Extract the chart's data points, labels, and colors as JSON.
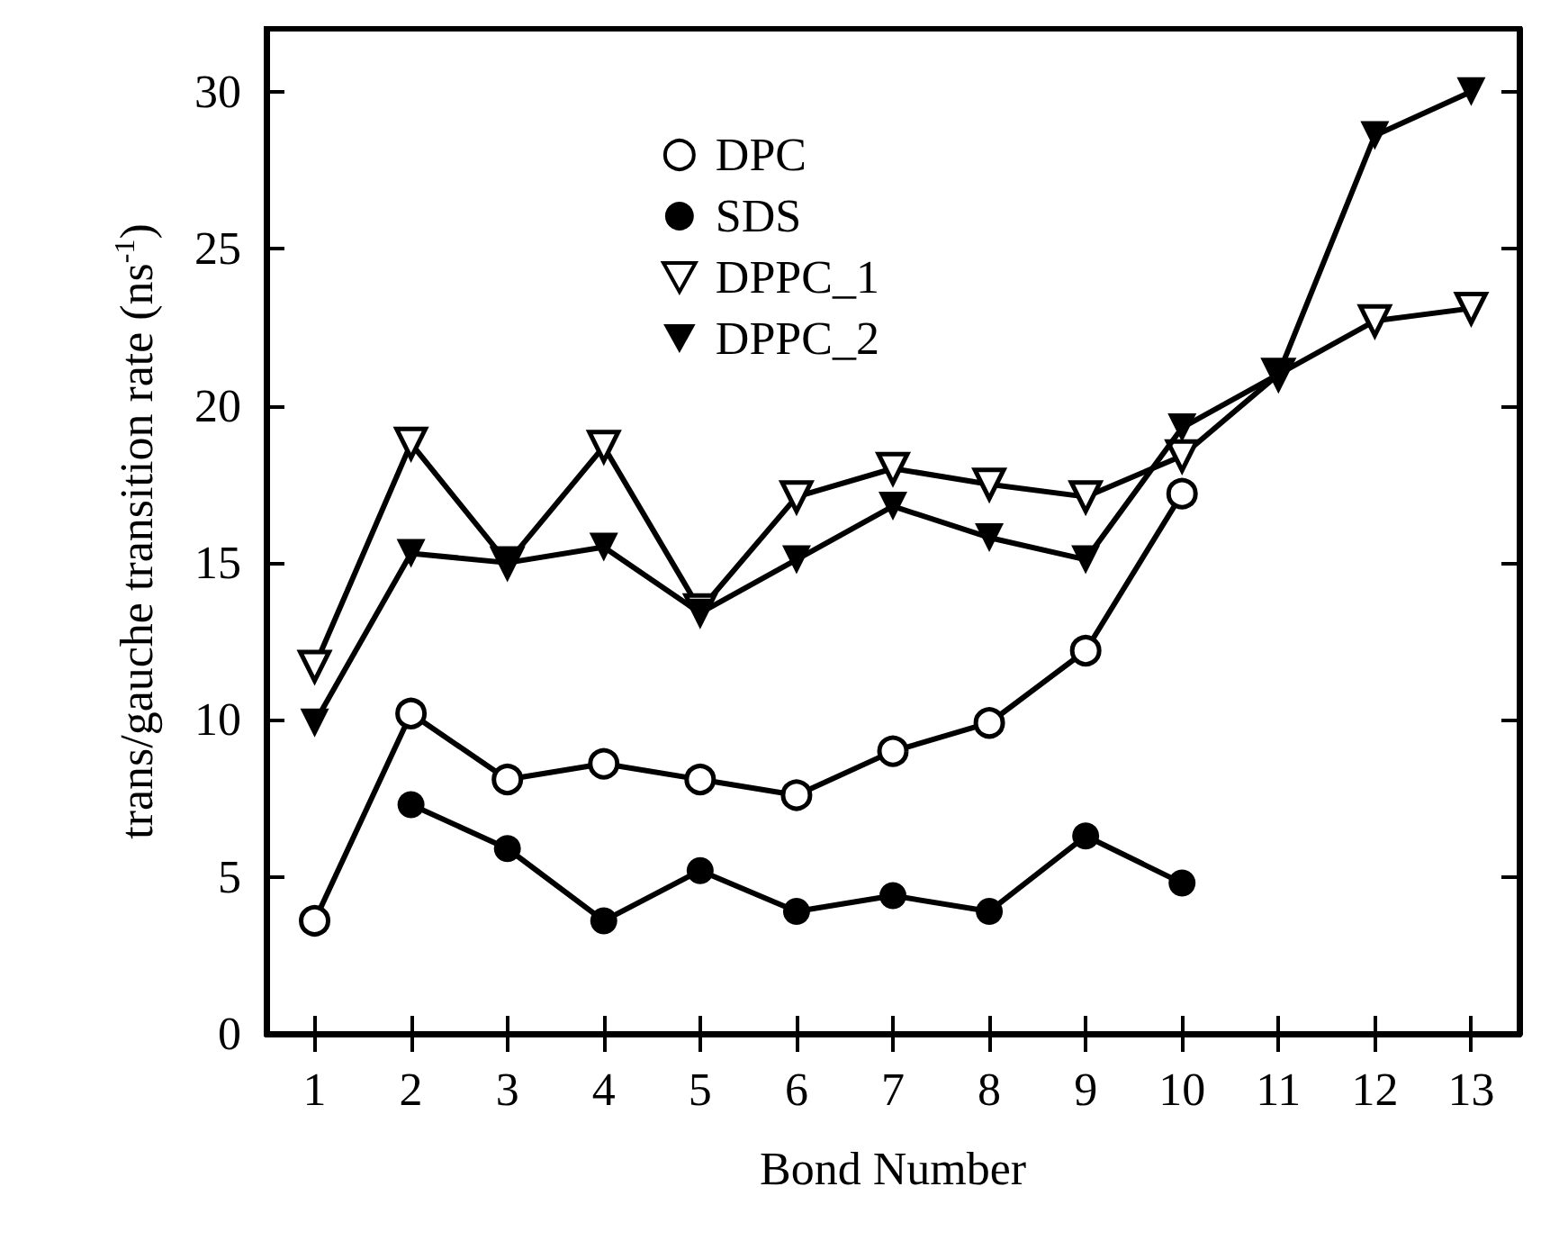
{
  "chart_data": {
    "type": "line",
    "xlabel": "Bond Number",
    "ylabel": "trans/gauche transition rate (ns$^{-1}$)",
    "x": [
      1,
      2,
      3,
      4,
      5,
      6,
      7,
      8,
      9,
      10,
      11,
      12,
      13
    ],
    "xlim": [
      0.5,
      13.5
    ],
    "xticks": [
      1,
      2,
      3,
      4,
      5,
      6,
      7,
      8,
      9,
      10,
      11,
      12,
      13
    ],
    "ylim": [
      0,
      32
    ],
    "yticks": [
      0,
      5,
      10,
      15,
      20,
      25,
      30
    ],
    "grid": false,
    "legend": "top",
    "line_style": "solid",
    "series": [
      {
        "name": "DPC",
        "color": "#000000",
        "marker": "circle-open",
        "values": [
          3.6,
          10.2,
          8.1,
          8.6,
          8.1,
          7.6,
          9.0,
          9.9,
          12.2,
          17.2,
          null,
          null,
          null
        ]
      },
      {
        "name": "SDS",
        "color": "#000000",
        "marker": "circle",
        "values": [
          null,
          7.3,
          5.9,
          3.6,
          5.2,
          3.9,
          4.4,
          3.9,
          6.3,
          4.8,
          null,
          null,
          null
        ]
      },
      {
        "name": "DPPC_1",
        "color": "#000000",
        "marker": "triangle-open",
        "values": [
          11.7,
          18.8,
          15.0,
          18.7,
          13.5,
          17.1,
          18.0,
          17.5,
          17.1,
          18.4,
          21.0,
          22.7,
          23.1
        ]
      },
      {
        "name": "DPPC_2",
        "color": "#000000",
        "marker": "triangle",
        "values": [
          9.9,
          15.3,
          15.0,
          15.5,
          13.4,
          15.1,
          16.8,
          15.8,
          15.1,
          19.3,
          21.0,
          28.6,
          30.0
        ]
      }
    ]
  }
}
